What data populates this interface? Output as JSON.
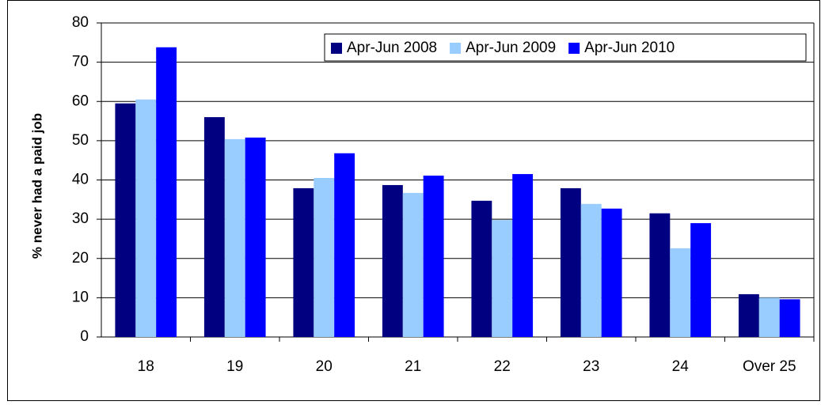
{
  "chart_data": {
    "type": "bar",
    "y_label": "% never had a paid job",
    "categories": [
      "18",
      "19",
      "20",
      "21",
      "22",
      "23",
      "24",
      "Over 25"
    ],
    "series": [
      {
        "name": "Apr-Jun 2008",
        "color": "#000080",
        "values": [
          59.5,
          56,
          37.9,
          38.7,
          34.7,
          37.9,
          31.5,
          10.9
        ]
      },
      {
        "name": "Apr-Jun 2009",
        "color": "#99ccff",
        "values": [
          60.5,
          50.4,
          40.5,
          36.7,
          29.8,
          33.9,
          22.6,
          10
        ]
      },
      {
        "name": "Apr-Jun 2010",
        "color": "#0000ff",
        "values": [
          73.8,
          50.8,
          46.8,
          41.1,
          41.5,
          32.7,
          29,
          9.6
        ]
      }
    ],
    "ylim": [
      0,
      80
    ],
    "yticks": [
      0,
      10,
      20,
      30,
      40,
      50,
      60,
      70,
      80
    ],
    "grid": true,
    "legend": "upper right"
  }
}
